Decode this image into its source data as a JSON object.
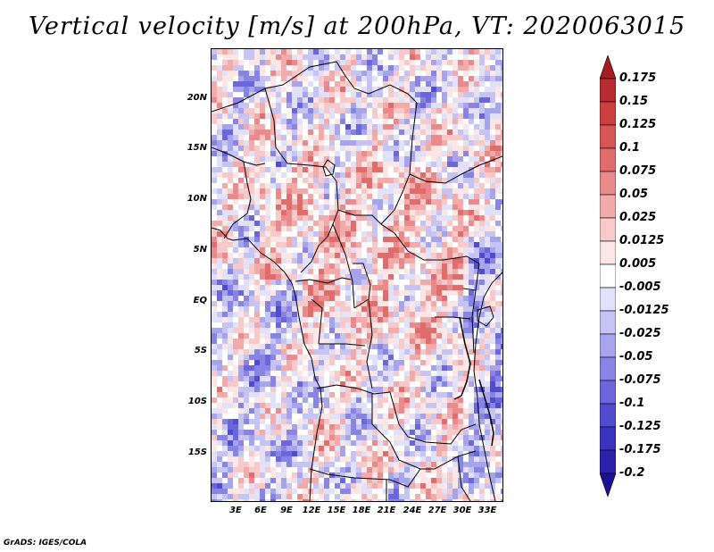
{
  "title": "Vertical velocity [m/s] at 200hPa, VT: 2020063015",
  "credit": "GrADS: IGES/COLA",
  "map": {
    "lat_ticks": [
      "20N",
      "15N",
      "10N",
      "5N",
      "EQ",
      "5S",
      "10S",
      "15S"
    ],
    "lon_ticks": [
      "3E",
      "6E",
      "9E",
      "12E",
      "15E",
      "18E",
      "21E",
      "24E",
      "27E",
      "30E",
      "33E"
    ]
  },
  "colorbar": {
    "labels": [
      "0.175",
      "0.15",
      "0.125",
      "0.1",
      "0.075",
      "0.05",
      "0.025",
      "0.0125",
      "0.005",
      "-0.005",
      "-0.0125",
      "-0.025",
      "-0.05",
      "-0.075",
      "-0.1",
      "-0.125",
      "-0.175",
      "-0.2"
    ],
    "colors": [
      "#a41d20",
      "#b82b2e",
      "#cc3f3f",
      "#d85555",
      "#e06c6c",
      "#ea8a8a",
      "#f2aaaa",
      "#f8c9c9",
      "#fde6e6",
      "#ffffff",
      "#e2e1fa",
      "#c6c4f4",
      "#a7a4ee",
      "#8884e6",
      "#6b66db",
      "#514bcf",
      "#3a33c0",
      "#2a22aa",
      "#1a1290"
    ]
  }
}
